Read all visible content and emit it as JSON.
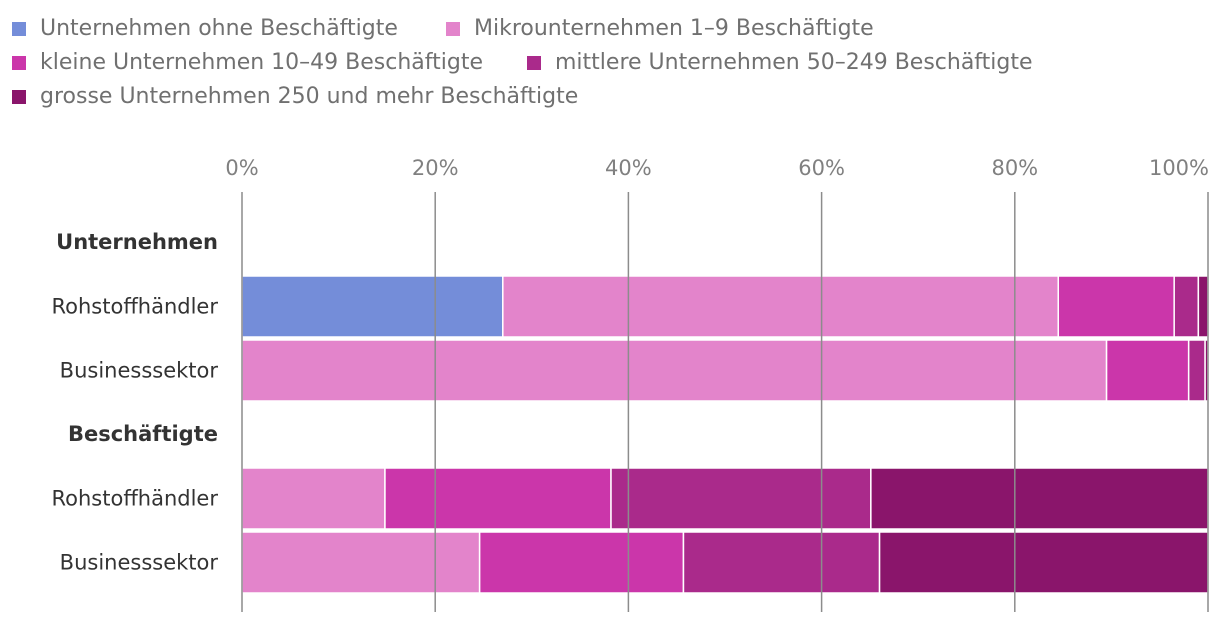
{
  "chart_data": {
    "type": "bar",
    "orientation": "horizontal",
    "stacked": true,
    "xlim": [
      0,
      100
    ],
    "x_ticks": [
      "0%",
      "20%",
      "40%",
      "60%",
      "80%",
      "100%"
    ],
    "grid": true,
    "legend_position": "top",
    "groups": [
      {
        "label": "Unternehmen",
        "rows": [
          {
            "label": "Rohstoffhändler",
            "values": [
              27.0,
              57.5,
              12.0,
              2.5,
              1.0
            ]
          },
          {
            "label": "Businesssektor",
            "values": [
              0.0,
              89.5,
              8.5,
              1.7,
              0.3
            ]
          }
        ]
      },
      {
        "label": "Beschäftigte",
        "rows": [
          {
            "label": "Rohstoffhändler",
            "values": [
              0.0,
              14.8,
              23.4,
              26.9,
              34.9
            ]
          },
          {
            "label": "Businesssektor",
            "values": [
              0.0,
              24.6,
              21.1,
              20.3,
              34.0
            ]
          }
        ]
      }
    ],
    "series": [
      {
        "name": "Unternehmen ohne Beschäftigte",
        "color": "#748dd9"
      },
      {
        "name": "Mikrounternehmen 1–9 Beschäftigte",
        "color": "#e384cb"
      },
      {
        "name": "kleine Unternehmen 10–49 Beschäftigte",
        "color": "#cb36aa"
      },
      {
        "name": "mittlere Unternehmen 50–249 Beschäftigte",
        "color": "#aa2a8b"
      },
      {
        "name": "grosse Unternehmen 250 und mehr Beschäftigte",
        "color": "#8a156b"
      }
    ]
  }
}
